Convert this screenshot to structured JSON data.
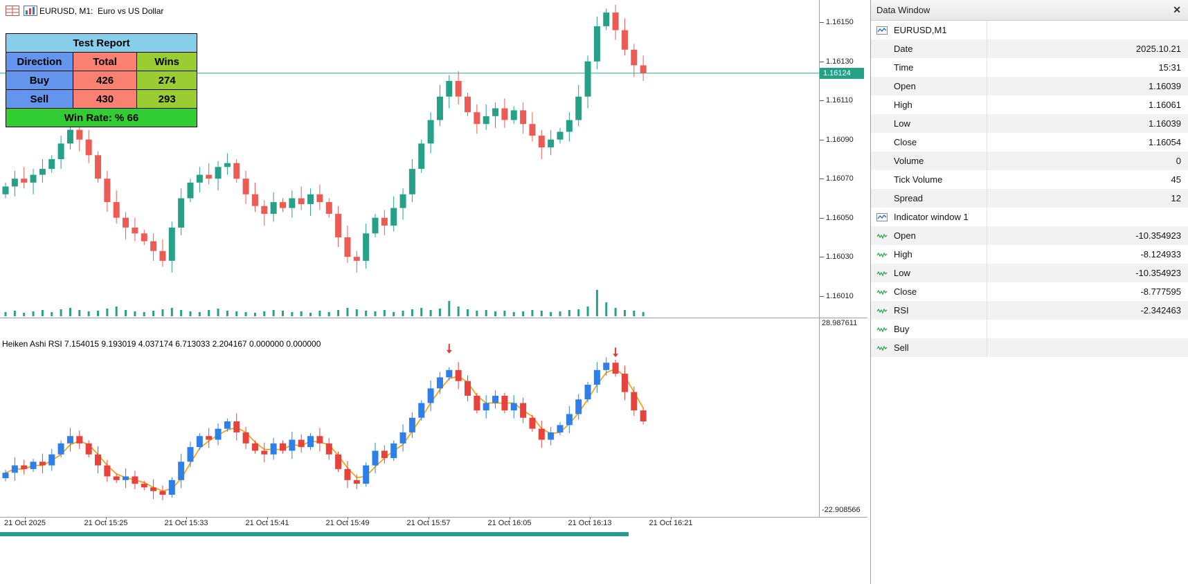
{
  "chart": {
    "title": "EURUSD, M1:  Euro vs US Dollar"
  },
  "test_report": {
    "title": "Test Report",
    "columns": [
      "Direction",
      "Total",
      "Wins"
    ],
    "rows": [
      [
        "Buy",
        "426",
        "274"
      ],
      [
        "Sell",
        "430",
        "293"
      ]
    ],
    "footer": "Win Rate: %  66",
    "colors": {
      "header": "#87CEEB",
      "direction": "#6495ED",
      "total": "#FA8072",
      "wins": "#9ACD32",
      "footer": "#32CD32"
    }
  },
  "price_axis": {
    "labels": [
      "1.16150",
      "1.16130",
      "1.16110",
      "1.16090",
      "1.16070",
      "1.16050",
      "1.16030",
      "1.16010"
    ],
    "current": "1.16124"
  },
  "indicator_axis": {
    "top": "28.987611",
    "bottom": "-22.908566"
  },
  "indicator": {
    "label": "Heiken Ashi RSI 7.154015 9.193019 4.037174 6.713033 2.204167 0.000000 0.000000"
  },
  "time_axis": {
    "labels": [
      "21 Oct 2025",
      "21 Oct 15:25",
      "21 Oct 15:33",
      "21 Oct 15:41",
      "21 Oct 15:49",
      "21 Oct 15:57",
      "21 Oct 16:05",
      "21 Oct 16:13",
      "21 Oct 16:21"
    ]
  },
  "colors": {
    "candle_up": "#27A088",
    "candle_down": "#EC5B54",
    "volume": "#27A088",
    "price_line": "#2AA896",
    "badge_bg": "#27A088",
    "badge_text": "#FFFFFF",
    "ind_up": "#2E7FE8",
    "ind_down": "#E8423C",
    "signal": "#FF9800",
    "arrow": "#E53935",
    "bottom_bar": "#1D9E8F"
  },
  "chart_data": [
    {
      "type": "candlestick",
      "symbol": "EURUSD",
      "timeframe": "M1",
      "ylim": [
        1.16,
        1.1616
      ],
      "closes": [
        1.16066,
        1.1607,
        1.16068,
        1.16072,
        1.16075,
        1.1608,
        1.16088,
        1.16095,
        1.1609,
        1.16082,
        1.1607,
        1.16058,
        1.1605,
        1.16045,
        1.16042,
        1.16038,
        1.16033,
        1.16028,
        1.16045,
        1.1606,
        1.16068,
        1.16072,
        1.1607,
        1.16076,
        1.16078,
        1.1607,
        1.16062,
        1.16056,
        1.16052,
        1.16058,
        1.16055,
        1.1606,
        1.16057,
        1.16062,
        1.16058,
        1.16052,
        1.1604,
        1.1603,
        1.16028,
        1.16042,
        1.1605,
        1.16046,
        1.16055,
        1.16062,
        1.16075,
        1.16088,
        1.161,
        1.16112,
        1.1612,
        1.16112,
        1.16104,
        1.16098,
        1.16102,
        1.16106,
        1.161,
        1.16105,
        1.16098,
        1.16092,
        1.16086,
        1.1609,
        1.16094,
        1.161,
        1.16112,
        1.1613,
        1.16148,
        1.16155,
        1.16146,
        1.16136,
        1.16128,
        1.16124
      ],
      "volumes": [
        6,
        8,
        5,
        7,
        9,
        6,
        10,
        12,
        9,
        7,
        8,
        11,
        14,
        9,
        7,
        6,
        8,
        10,
        12,
        9,
        7,
        6,
        9,
        11,
        8,
        7,
        6,
        5,
        7,
        9,
        8,
        6,
        7,
        5,
        8,
        6,
        9,
        12,
        10,
        8,
        7,
        9,
        6,
        8,
        10,
        12,
        9,
        11,
        22,
        14,
        10,
        8,
        9,
        7,
        8,
        6,
        7,
        9,
        8,
        6,
        7,
        9,
        10,
        14,
        38,
        20,
        12,
        9,
        8,
        6
      ]
    },
    {
      "type": "candlestick",
      "name": "Heiken Ashi RSI",
      "ylim": [
        -22.908566,
        28.987611
      ],
      "closes": [
        -12,
        -10,
        -11,
        -9,
        -10,
        -7,
        -4,
        -2,
        -4,
        -7,
        -10,
        -13,
        -14,
        -13,
        -15,
        -16,
        -17,
        -18,
        -14,
        -9,
        -5,
        -2,
        -3,
        0,
        2,
        -1,
        -4,
        -6,
        -7,
        -4,
        -6,
        -3,
        -5,
        -2,
        -4,
        -7,
        -11,
        -14,
        -15,
        -10,
        -6,
        -8,
        -4,
        -1,
        3,
        7,
        11,
        14,
        16,
        13,
        9,
        5,
        7,
        9,
        5,
        7,
        3,
        0,
        -3,
        -1,
        1,
        4,
        8,
        12,
        16,
        18,
        15,
        10,
        5,
        2
      ],
      "signal": "ma3",
      "arrow_indices": [
        48,
        66
      ]
    }
  ],
  "data_window": {
    "title": "Data Window",
    "close_label": "✕",
    "symbol_section": "EURUSD,M1",
    "rows": [
      {
        "label": "Date",
        "value": "2025.10.21"
      },
      {
        "label": "Time",
        "value": "15:31"
      },
      {
        "label": "Open",
        "value": "1.16039"
      },
      {
        "label": "High",
        "value": "1.16061"
      },
      {
        "label": "Low",
        "value": "1.16039"
      },
      {
        "label": "Close",
        "value": "1.16054"
      },
      {
        "label": "Volume",
        "value": "0"
      },
      {
        "label": "Tick Volume",
        "value": "45"
      },
      {
        "label": "Spread",
        "value": "12"
      }
    ],
    "indicator_section": "Indicator window 1",
    "indicator_rows": [
      {
        "label": "Open",
        "value": "-10.354923"
      },
      {
        "label": "High",
        "value": "-8.124933"
      },
      {
        "label": "Low",
        "value": "-10.354923"
      },
      {
        "label": "Close",
        "value": "-8.777595"
      },
      {
        "label": "RSI",
        "value": "-2.342463"
      },
      {
        "label": "Buy",
        "value": ""
      },
      {
        "label": "Sell",
        "value": ""
      }
    ]
  }
}
